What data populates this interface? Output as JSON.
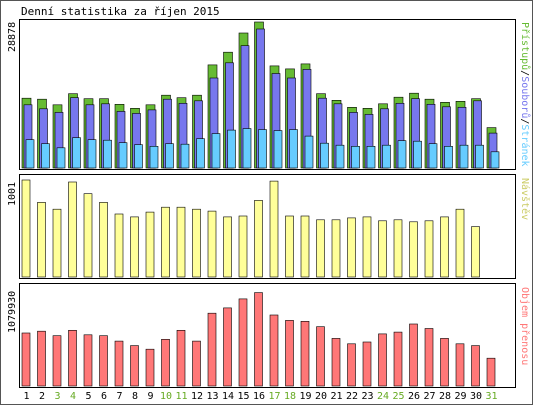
{
  "title": "Denní statistika za říjen 2015",
  "colors": {
    "hits": "#66bb33",
    "files": "#7777ee",
    "pages": "#66ccff",
    "visits": "#ffff99",
    "kbytes": "#ff7777",
    "weekend": "#66aa22",
    "weekday": "#000000",
    "sep": "#000000"
  },
  "side_labels": {
    "panel1": {
      "hits": "Přístupů",
      "sep1": "/",
      "files": "Souborů",
      "sep2": "/",
      "pages": "Stránek"
    },
    "panel2": "Návštěv",
    "panel3": "Objem přenosu"
  },
  "chart_data": [
    {
      "type": "bar",
      "name": "hits-files-pages",
      "x": [
        "1",
        "2",
        "3",
        "4",
        "5",
        "6",
        "7",
        "8",
        "9",
        "10",
        "11",
        "12",
        "13",
        "14",
        "15",
        "16",
        "17",
        "18",
        "19",
        "20",
        "21",
        "22",
        "23",
        "24",
        "25",
        "26",
        "27",
        "28",
        "29",
        "30",
        "31"
      ],
      "weekend": [
        "3",
        "4",
        "10",
        "11",
        "17",
        "18",
        "24",
        "25",
        "31"
      ],
      "y_tick_label": "28878",
      "ylim": [
        0,
        28878
      ],
      "series": [
        {
          "name": "Přístupů",
          "values": [
            13800,
            13600,
            12500,
            14700,
            13700,
            13700,
            12600,
            11800,
            12500,
            14400,
            13900,
            14400,
            20400,
            22900,
            26700,
            28878,
            20200,
            19600,
            20600,
            14700,
            13400,
            12000,
            11800,
            12700,
            14000,
            14800,
            13600,
            13000,
            13200,
            13700,
            8000
          ]
        },
        {
          "name": "Souborů",
          "values": [
            12500,
            11700,
            11000,
            13900,
            12500,
            12700,
            11200,
            10800,
            11500,
            13600,
            12800,
            13300,
            17800,
            20800,
            24200,
            27500,
            18700,
            17800,
            19500,
            13800,
            12700,
            11000,
            10600,
            11700,
            12800,
            13700,
            12600,
            12100,
            12000,
            13300,
            6900
          ]
        },
        {
          "name": "Stránek",
          "values": [
            5600,
            4800,
            4000,
            6000,
            5600,
            5500,
            5000,
            4600,
            4300,
            4800,
            4700,
            5800,
            6800,
            7500,
            7800,
            7600,
            7400,
            7600,
            6300,
            4900,
            4500,
            4300,
            4300,
            4500,
            5400,
            5300,
            4800,
            4300,
            4500,
            4500,
            3200
          ]
        }
      ]
    },
    {
      "type": "bar",
      "name": "visits",
      "x": [
        "1",
        "2",
        "3",
        "4",
        "5",
        "6",
        "7",
        "8",
        "9",
        "10",
        "11",
        "12",
        "13",
        "14",
        "15",
        "16",
        "17",
        "18",
        "19",
        "20",
        "21",
        "22",
        "23",
        "24",
        "25",
        "26",
        "27",
        "28",
        "29",
        "30",
        "31"
      ],
      "y_tick_label": "1001",
      "ylim": [
        0,
        1001
      ],
      "series": [
        {
          "name": "Návštěv",
          "values": [
            1001,
            770,
            700,
            980,
            860,
            770,
            650,
            620,
            670,
            720,
            720,
            700,
            680,
            620,
            630,
            790,
            990,
            630,
            630,
            590,
            590,
            610,
            620,
            580,
            590,
            570,
            580,
            620,
            700,
            520,
            0
          ]
        }
      ]
    },
    {
      "type": "bar",
      "name": "kbytes",
      "x": [
        "1",
        "2",
        "3",
        "4",
        "5",
        "6",
        "7",
        "8",
        "9",
        "10",
        "11",
        "12",
        "13",
        "14",
        "15",
        "16",
        "17",
        "18",
        "19",
        "20",
        "21",
        "22",
        "23",
        "24",
        "25",
        "26",
        "27",
        "28",
        "29",
        "30",
        "31"
      ],
      "y_tick_label": "1079930",
      "ylim": [
        0,
        1079930
      ],
      "series": [
        {
          "name": "Objem přenosu",
          "values": [
            590000,
            610000,
            560000,
            620000,
            570000,
            560000,
            500000,
            450000,
            410000,
            520000,
            620000,
            500000,
            810000,
            870000,
            970000,
            1040000,
            790000,
            730000,
            720000,
            660000,
            530000,
            470000,
            490000,
            580000,
            600000,
            690000,
            640000,
            530000,
            470000,
            450000,
            310000
          ]
        }
      ]
    }
  ]
}
